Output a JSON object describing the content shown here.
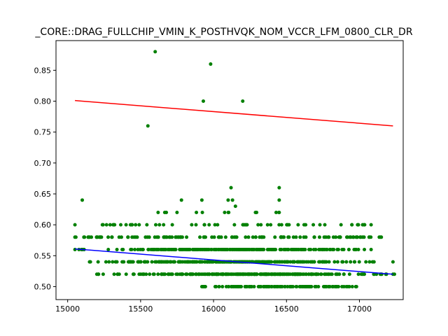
{
  "chart_data": {
    "type": "scatter",
    "title": "_CORE::DRAG_FULLCHIP_VMIN_K_POSTHVQK_NOM_VCCR_LFM_0800_CLR_DR",
    "xlabel": "",
    "ylabel": "",
    "xlim": [
      14920,
      17300
    ],
    "ylim": [
      0.479,
      0.898
    ],
    "xticks": [
      15000,
      15500,
      16000,
      16500,
      17000
    ],
    "xtick_labels": [
      "15000",
      "15500",
      "16000",
      "16500",
      "17000"
    ],
    "yticks": [
      0.5,
      0.55,
      0.6,
      0.65,
      0.7,
      0.75,
      0.8,
      0.85
    ],
    "ytick_labels": [
      "0.50",
      "0.55",
      "0.60",
      "0.65",
      "0.70",
      "0.75",
      "0.80",
      "0.85"
    ],
    "grid": false,
    "colors": {
      "points": "#008000",
      "upper_line": "#ff0000",
      "lower_line": "#0000ff",
      "axes": "#000000"
    },
    "series": [
      {
        "kind": "points",
        "bands": [
          {
            "y": 0.5,
            "x_min": 15920,
            "x_max": 16980,
            "density": "medium"
          },
          {
            "y": 0.52,
            "x_min": 15200,
            "x_max": 17230,
            "density": "high"
          },
          {
            "y": 0.54,
            "x_min": 15150,
            "x_max": 17100,
            "density": "high"
          },
          {
            "y": 0.56,
            "x_min": 15050,
            "x_max": 17080,
            "density": "high"
          },
          {
            "y": 0.58,
            "x_min": 15050,
            "x_max": 17150,
            "density": "medium"
          },
          {
            "y": 0.6,
            "x_min": 15050,
            "x_max": 17080,
            "density": "low"
          },
          {
            "y": 0.62,
            "x_min": 15620,
            "x_max": 16450,
            "density": "sparse"
          }
        ],
        "points": [
          {
            "x": 15600,
            "y": 0.88
          },
          {
            "x": 15980,
            "y": 0.86
          },
          {
            "x": 15930,
            "y": 0.8
          },
          {
            "x": 16200,
            "y": 0.8
          },
          {
            "x": 15550,
            "y": 0.76
          },
          {
            "x": 16120,
            "y": 0.66
          },
          {
            "x": 16450,
            "y": 0.66
          },
          {
            "x": 15100,
            "y": 0.64
          },
          {
            "x": 15780,
            "y": 0.64
          },
          {
            "x": 15920,
            "y": 0.64
          },
          {
            "x": 16100,
            "y": 0.64
          },
          {
            "x": 16130,
            "y": 0.64
          },
          {
            "x": 16450,
            "y": 0.64
          },
          {
            "x": 16150,
            "y": 0.63
          },
          {
            "x": 15210,
            "y": 0.52
          },
          {
            "x": 15450,
            "y": 0.52
          },
          {
            "x": 17230,
            "y": 0.54
          },
          {
            "x": 17240,
            "y": 0.52
          }
        ]
      },
      {
        "kind": "line",
        "color": "#ff0000",
        "x": [
          15050,
          17230
        ],
        "y": [
          0.801,
          0.76
        ]
      },
      {
        "kind": "line",
        "color": "#0000ff",
        "x": [
          15050,
          17230
        ],
        "y": [
          0.561,
          0.52
        ]
      }
    ]
  }
}
